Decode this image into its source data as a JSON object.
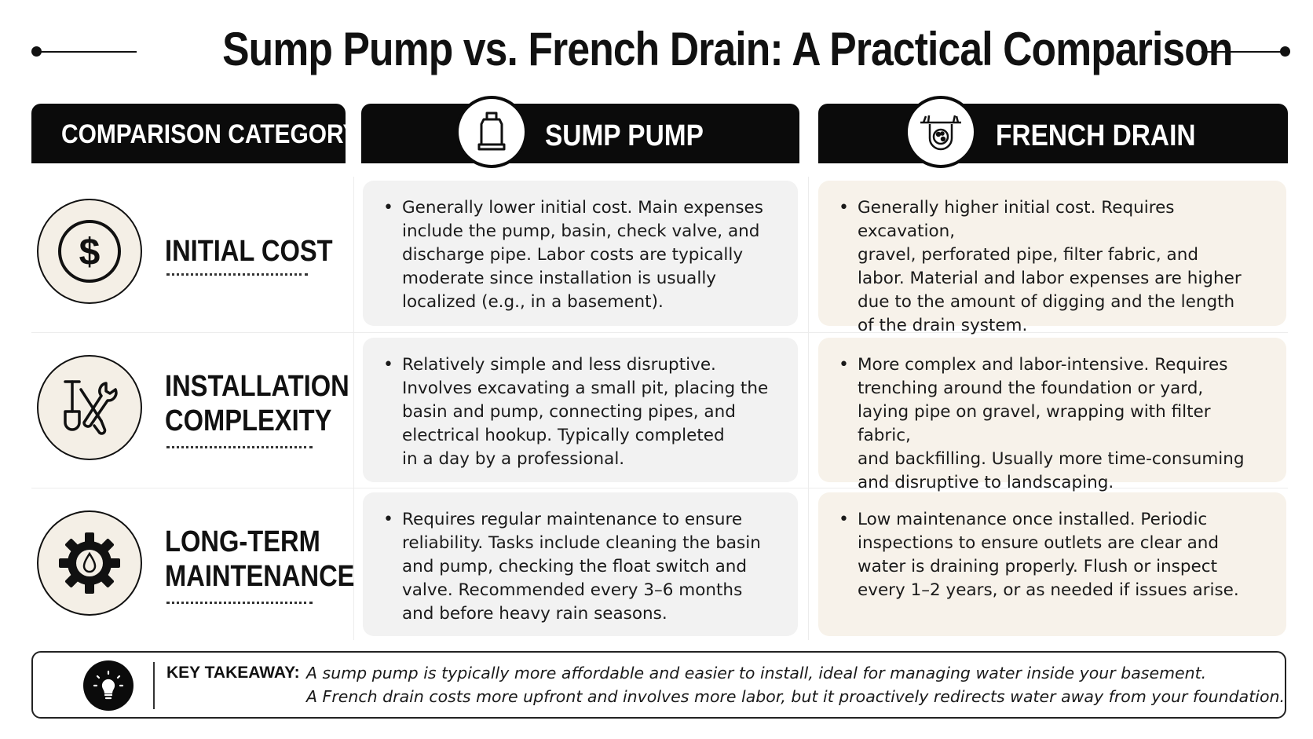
{
  "title": "Sump Pump vs. French Drain: A Practical Comparison",
  "headers": {
    "category": "COMPARISON CATEGORY",
    "sump_pump": "SUMP PUMP",
    "french_drain": "FRENCH DRAIN"
  },
  "rows": [
    {
      "category_line1": "INITIAL COST",
      "category_line2": "",
      "icon": "dollar-icon",
      "sump_pump": [
        "Generally lower initial cost. Main expenses",
        "include the pump, basin, check valve, and",
        "discharge pipe. Labor costs are typically",
        "moderate since installation is usually",
        "localized (e.g., in a basement)."
      ],
      "french_drain": [
        "Generally higher initial cost. Requires excavation,",
        "gravel, perforated pipe, filter fabric, and",
        "labor. Material and labor expenses are higher",
        "due to the amount of digging and the length",
        "of the drain system."
      ]
    },
    {
      "category_line1": "INSTALLATION",
      "category_line2": "COMPLEXITY",
      "icon": "shovel-wrench-icon",
      "sump_pump": [
        "Relatively simple and less disruptive.",
        "Involves excavating a small pit, placing the",
        "basin and pump, connecting pipes, and",
        "electrical hookup. Typically completed",
        "in a day by a professional."
      ],
      "french_drain": [
        "More complex and labor-intensive. Requires",
        "trenching around the foundation or yard,",
        "laying pipe on gravel, wrapping with filter fabric,",
        "and backfilling. Usually more time-consuming",
        "and disruptive to landscaping."
      ]
    },
    {
      "category_line1": "LONG-TERM",
      "category_line2": "MAINTENANCE",
      "icon": "gear-water-drop-icon",
      "sump_pump": [
        "Requires regular maintenance to ensure",
        "reliability. Tasks include cleaning the basin",
        "and pump, checking the float switch and",
        "valve. Recommended every 3–6 months",
        "and before heavy rain seasons."
      ],
      "french_drain": [
        "Low maintenance once installed. Periodic",
        "inspections to ensure outlets are clear and",
        "water is draining properly. Flush or inspect",
        "every 1–2 years, or as needed if issues arise."
      ]
    }
  ],
  "takeaway": {
    "label": "KEY TAKEAWAY:",
    "line1": "A sump pump is typically more affordable and easier to install, ideal for managing water inside your basement.",
    "line2": "A French drain costs more upfront and involves more labor, but it proactively redirects water away from your foundation.",
    "icon": "lightbulb-icon"
  }
}
